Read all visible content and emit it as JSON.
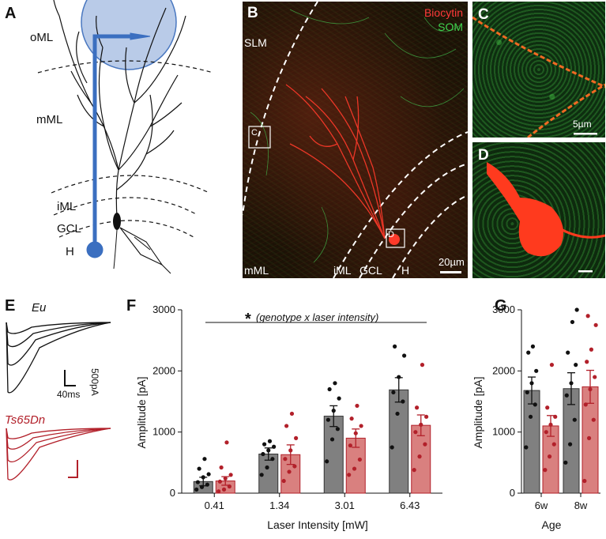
{
  "panels": {
    "A": {
      "letter": "A",
      "layers": [
        "oML",
        "mML",
        "iML",
        "GCL",
        "H"
      ]
    },
    "B": {
      "letter": "B",
      "legend": {
        "biocytin": "Biocytin",
        "som": "SOM",
        "biocytin_color": "#e8202a",
        "som_color": "#38c24a"
      },
      "layers": {
        "slm": "SLM",
        "mml": "mML",
        "iml": "iML",
        "gcl": "GCL",
        "h": "H"
      },
      "inset_labels": {
        "c": "C",
        "d": "D"
      },
      "scalebar": "20µm"
    },
    "C": {
      "letter": "C",
      "scalebar": "5µm"
    },
    "D": {
      "letter": "D"
    },
    "E": {
      "letter": "E",
      "eu_label": "Eu",
      "ts_label": "Ts65Dn",
      "scale_y": "500pA",
      "scale_x": "40ms",
      "eu_color": "#111111",
      "ts_color": "#b2202a"
    },
    "F": {
      "letter": "F",
      "significance": "(genotype x laser intensity)",
      "star": "*"
    },
    "G": {
      "letter": "G"
    }
  },
  "chart_data": [
    {
      "type": "bar",
      "panel": "F",
      "categories": [
        "0.41",
        "1.34",
        "3.01",
        "6.43"
      ],
      "xlabel": "Laser Intensity [mW]",
      "ylabel": "Amplitude [pA]",
      "ylim": [
        0,
        3000
      ],
      "yticks": [
        "0",
        "1000",
        "2000",
        "3000"
      ],
      "series": [
        {
          "color": "#808080",
          "values": [
            190,
            640,
            1260,
            1690
          ],
          "sem": [
            70,
            100,
            170,
            200
          ],
          "points": [
            [
              60,
              100,
              140,
              180,
              260,
              310,
              400,
              560
            ],
            [
              300,
              420,
              560,
              640,
              700,
              760,
              800,
              850
            ],
            [
              520,
              880,
              1050,
              1200,
              1350,
              1550,
              1700,
              1800
            ],
            [
              750,
              1300,
              1500,
              1650,
              1900,
              2250,
              2400
            ]
          ]
        },
        {
          "color": "#d9807f",
          "values": [
            200,
            630,
            900,
            1110
          ],
          "sem": [
            70,
            160,
            150,
            170
          ],
          "points": [
            [
              30,
              60,
              110,
              190,
              240,
              300,
              420,
              830
            ],
            [
              200,
              350,
              440,
              560,
              700,
              900,
              1100,
              1300
            ],
            [
              300,
              400,
              550,
              780,
              980,
              1100,
              1220,
              1430
            ],
            [
              380,
              600,
              800,
              1000,
              1120,
              1250,
              1400,
              2100
            ]
          ]
        }
      ]
    },
    {
      "type": "bar",
      "panel": "G",
      "categories": [
        "6w",
        "8w"
      ],
      "xlabel": "Age",
      "ylabel": "Amplitude [pA]",
      "ylim": [
        0,
        3000
      ],
      "yticks": [
        "0",
        "1000",
        "2000",
        "3000"
      ],
      "series": [
        {
          "color": "#808080",
          "values": [
            1680,
            1710
          ],
          "sem": [
            220,
            260
          ],
          "points": [
            [
              750,
              1250,
              1450,
              1650,
              1800,
              2000,
              2300,
              2400
            ],
            [
              500,
              800,
              1200,
              1600,
              1800,
              2100,
              2300,
              2800,
              3000
            ]
          ]
        },
        {
          "color": "#d9807f",
          "values": [
            1100,
            1740
          ],
          "sem": [
            170,
            270
          ],
          "points": [
            [
              380,
              600,
              800,
              1000,
              1120,
              1250,
              1400,
              2100
            ],
            [
              200,
              900,
              1200,
              1450,
              1700,
              1900,
              2150,
              2350,
              2750,
              2900
            ]
          ]
        }
      ]
    }
  ]
}
